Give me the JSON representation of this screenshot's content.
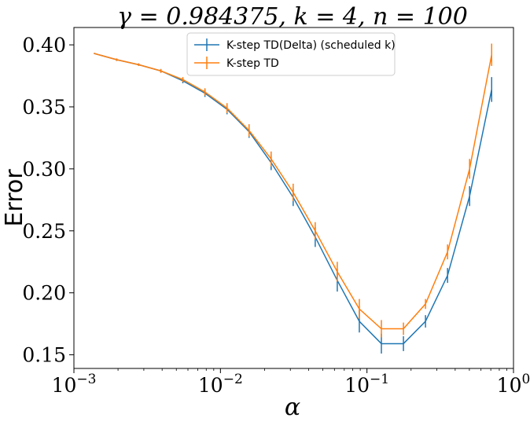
{
  "chart_data": {
    "type": "line",
    "title": "γ = 0.984375, k = 4, n = 100",
    "xlabel": "α",
    "ylabel": "Error",
    "xscale": "log",
    "xlim": [
      0.001,
      1
    ],
    "ylim": [
      0.139,
      0.414
    ],
    "xticks": [
      {
        "value": 0.001,
        "label": "10",
        "exp": "−3"
      },
      {
        "value": 0.01,
        "label": "10",
        "exp": "−2"
      },
      {
        "value": 0.1,
        "label": "10",
        "exp": "−1"
      },
      {
        "value": 1,
        "label": "10",
        "exp": "0"
      }
    ],
    "yticks": [
      {
        "value": 0.15,
        "label": "0.15"
      },
      {
        "value": 0.2,
        "label": "0.20"
      },
      {
        "value": 0.25,
        "label": "0.25"
      },
      {
        "value": 0.3,
        "label": "0.30"
      },
      {
        "value": 0.35,
        "label": "0.35"
      },
      {
        "value": 0.4,
        "label": "0.40"
      }
    ],
    "grid": false,
    "legend_position": "top-center",
    "x": [
      0.00138,
      0.00196,
      0.00277,
      0.00392,
      0.00554,
      0.00784,
      0.01109,
      0.01568,
      0.02218,
      0.03136,
      0.04435,
      0.06272,
      0.0887,
      0.12544,
      0.1774,
      0.25088,
      0.3548,
      0.50176,
      0.7096
    ],
    "series": [
      {
        "name": "K-step TD(Delta) (scheduled k)",
        "color": "#1f77b4",
        "values": [
          0.393,
          0.388,
          0.384,
          0.379,
          0.371,
          0.361,
          0.348,
          0.33,
          0.305,
          0.277,
          0.245,
          0.21,
          0.177,
          0.159,
          0.159,
          0.177,
          0.214,
          0.278,
          0.364
        ],
        "errors": [
          0.0005,
          0.001,
          0.001,
          0.0015,
          0.002,
          0.003,
          0.004,
          0.005,
          0.006,
          0.007,
          0.008,
          0.009,
          0.009,
          0.008,
          0.006,
          0.005,
          0.006,
          0.008,
          0.01
        ]
      },
      {
        "name": "K-step TD",
        "color": "#ff7f0e",
        "values": [
          0.393,
          0.388,
          0.384,
          0.379,
          0.372,
          0.362,
          0.349,
          0.331,
          0.308,
          0.281,
          0.25,
          0.217,
          0.187,
          0.171,
          0.171,
          0.191,
          0.233,
          0.3,
          0.392
        ],
        "errors": [
          0.0005,
          0.001,
          0.001,
          0.0015,
          0.002,
          0.003,
          0.004,
          0.005,
          0.006,
          0.007,
          0.007,
          0.008,
          0.008,
          0.007,
          0.005,
          0.004,
          0.006,
          0.008,
          0.009
        ]
      }
    ]
  }
}
